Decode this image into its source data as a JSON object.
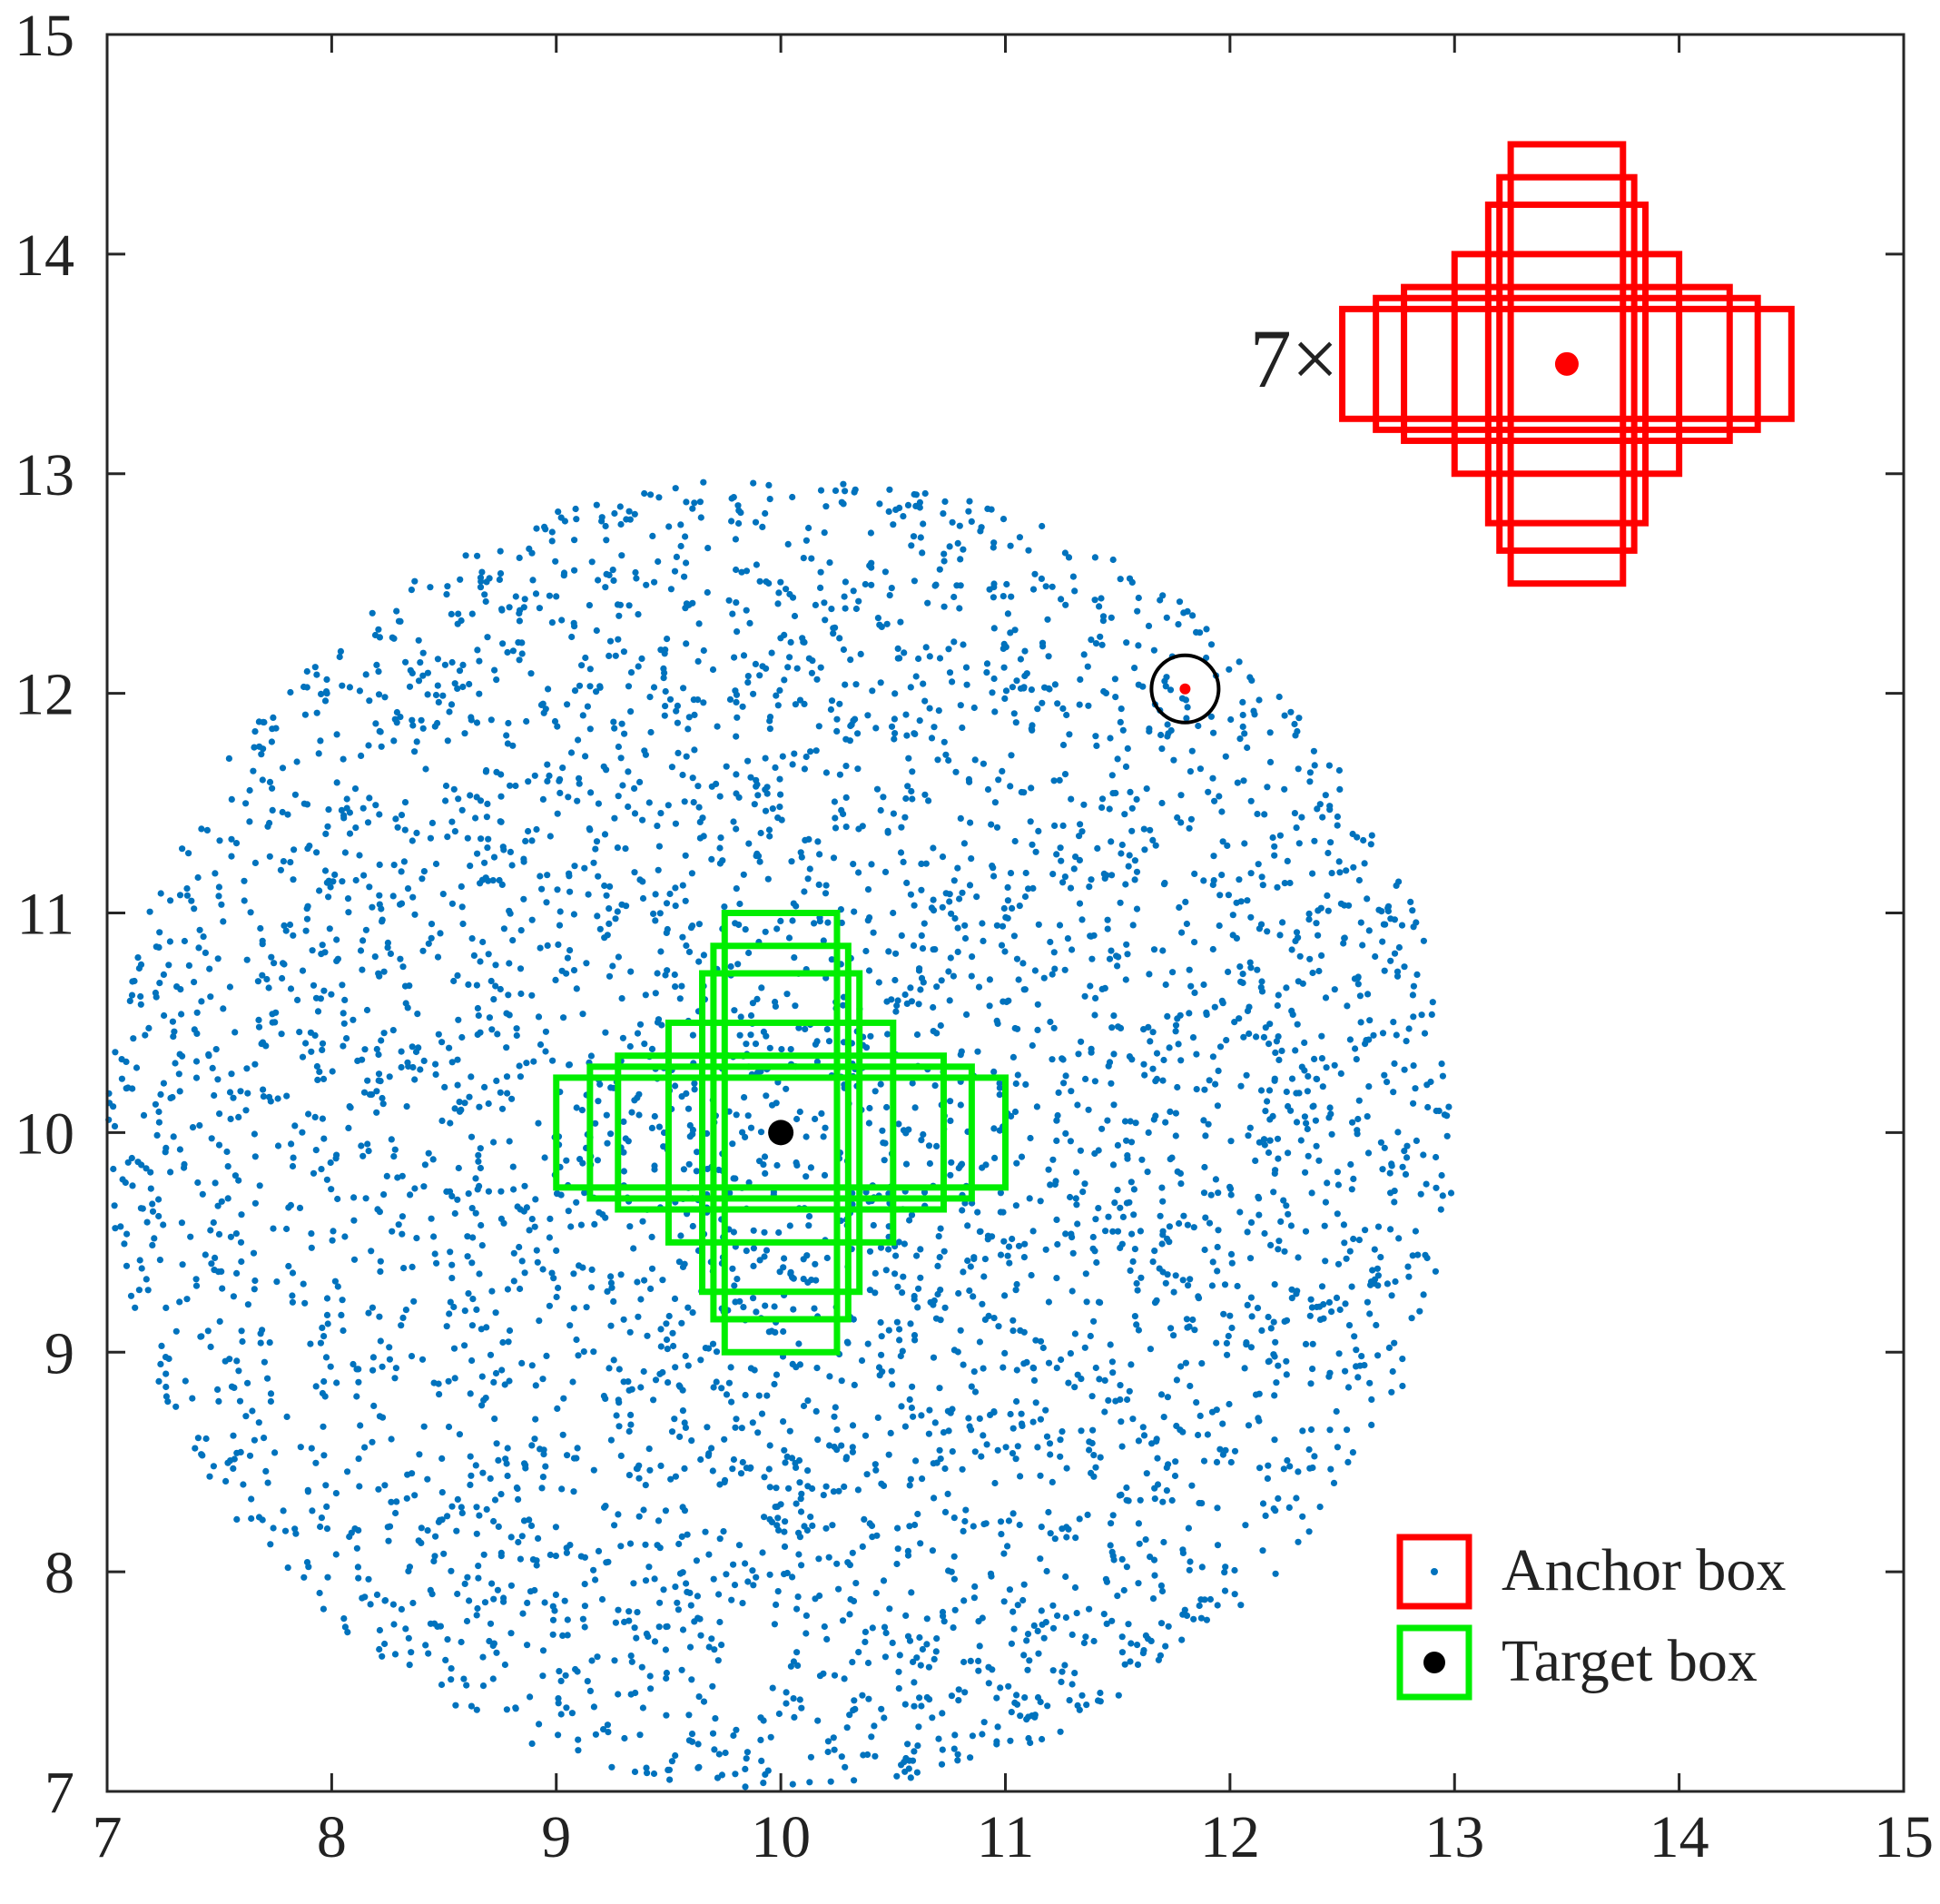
{
  "chart_data": {
    "type": "scatter",
    "title": "",
    "xlabel": "",
    "ylabel": "",
    "xlim": [
      7,
      15
    ],
    "ylim": [
      7,
      15
    ],
    "xticks": [
      "7",
      "8",
      "9",
      "10",
      "11",
      "12",
      "13",
      "14",
      "15"
    ],
    "yticks": [
      "7",
      "8",
      "9",
      "10",
      "11",
      "12",
      "13",
      "14",
      "15"
    ],
    "grid": false,
    "legend_position": "bottom-right",
    "legend": [
      {
        "label": "Anchor box",
        "box_color": "#ff0000",
        "marker": "small-dot",
        "marker_color": "#0072bd"
      },
      {
        "label": "Target box",
        "box_color": "#00ee00",
        "marker": "large-dot",
        "marker_color": "#000000"
      }
    ],
    "scatter_cloud": {
      "color": "#0072bd",
      "center": [
        10,
        10
      ],
      "radius": 3,
      "approx_count": 4500
    },
    "target": {
      "center": [
        10,
        10
      ],
      "color": "#00ee00",
      "center_color": "#000000",
      "boxes": [
        {
          "w": 0.5,
          "h": 2.0
        },
        {
          "w": 0.6,
          "h": 1.7
        },
        {
          "w": 0.7,
          "h": 1.45
        },
        {
          "w": 1.0,
          "h": 1.0
        },
        {
          "w": 1.45,
          "h": 0.7
        },
        {
          "w": 1.7,
          "h": 0.6
        },
        {
          "w": 2.0,
          "h": 0.5
        }
      ]
    },
    "anchor": {
      "center": [
        13.5,
        13.5
      ],
      "color": "#ff0000",
      "boxes": [
        {
          "w": 0.5,
          "h": 2.0
        },
        {
          "w": 0.6,
          "h": 1.7
        },
        {
          "w": 0.7,
          "h": 1.45
        },
        {
          "w": 1.0,
          "h": 1.0
        },
        {
          "w": 1.45,
          "h": 0.7
        },
        {
          "w": 1.7,
          "h": 0.6
        },
        {
          "w": 2.0,
          "h": 0.5
        }
      ]
    },
    "highlight": {
      "point": [
        11.8,
        12.02
      ],
      "point_color": "#ff0000",
      "circle_color": "#000000"
    },
    "annotation": {
      "text": "7×",
      "position": "left of anchor boxes"
    }
  }
}
